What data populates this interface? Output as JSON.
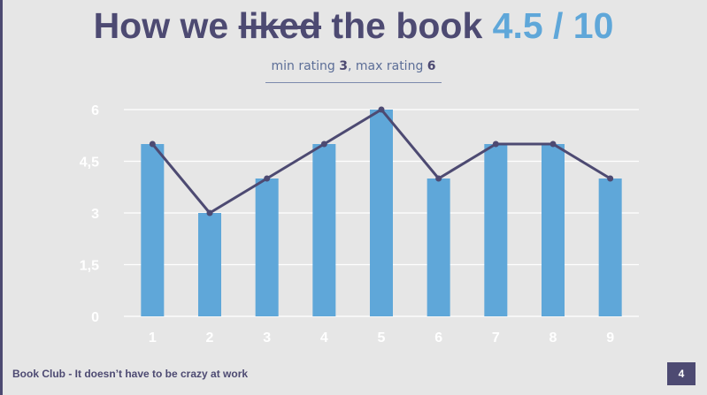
{
  "title": {
    "prefix": "How we ",
    "struck": "liked",
    "suffix": " the book ",
    "score": "4.5 / 10"
  },
  "subtitle": {
    "min_label": "min rating ",
    "min_value": "3",
    "separator": ", max rating ",
    "max_value": "6"
  },
  "footer": {
    "text": "Book Club - It doesn’t have to be crazy at work",
    "page_number": "4"
  },
  "colors": {
    "bar": "#5fa7d9",
    "line": "#4d4a72",
    "title": "#4d4a72",
    "accent": "#5fa7d9"
  },
  "chart_data": {
    "type": "bar",
    "categories": [
      "1",
      "2",
      "3",
      "4",
      "5",
      "6",
      "7",
      "8",
      "9"
    ],
    "series": [
      {
        "type": "bar",
        "values": [
          5,
          3,
          4,
          5,
          6,
          4,
          5,
          5,
          4
        ]
      },
      {
        "type": "line",
        "values": [
          5,
          3,
          4,
          5,
          6,
          4,
          5,
          5,
          4
        ]
      }
    ],
    "y_ticks": [
      "0",
      "1,5",
      "3",
      "4,5",
      "6"
    ],
    "y_tick_values": [
      0,
      1.5,
      3,
      4.5,
      6
    ],
    "ylim": [
      0,
      6
    ],
    "grid": true,
    "legend": "none"
  }
}
